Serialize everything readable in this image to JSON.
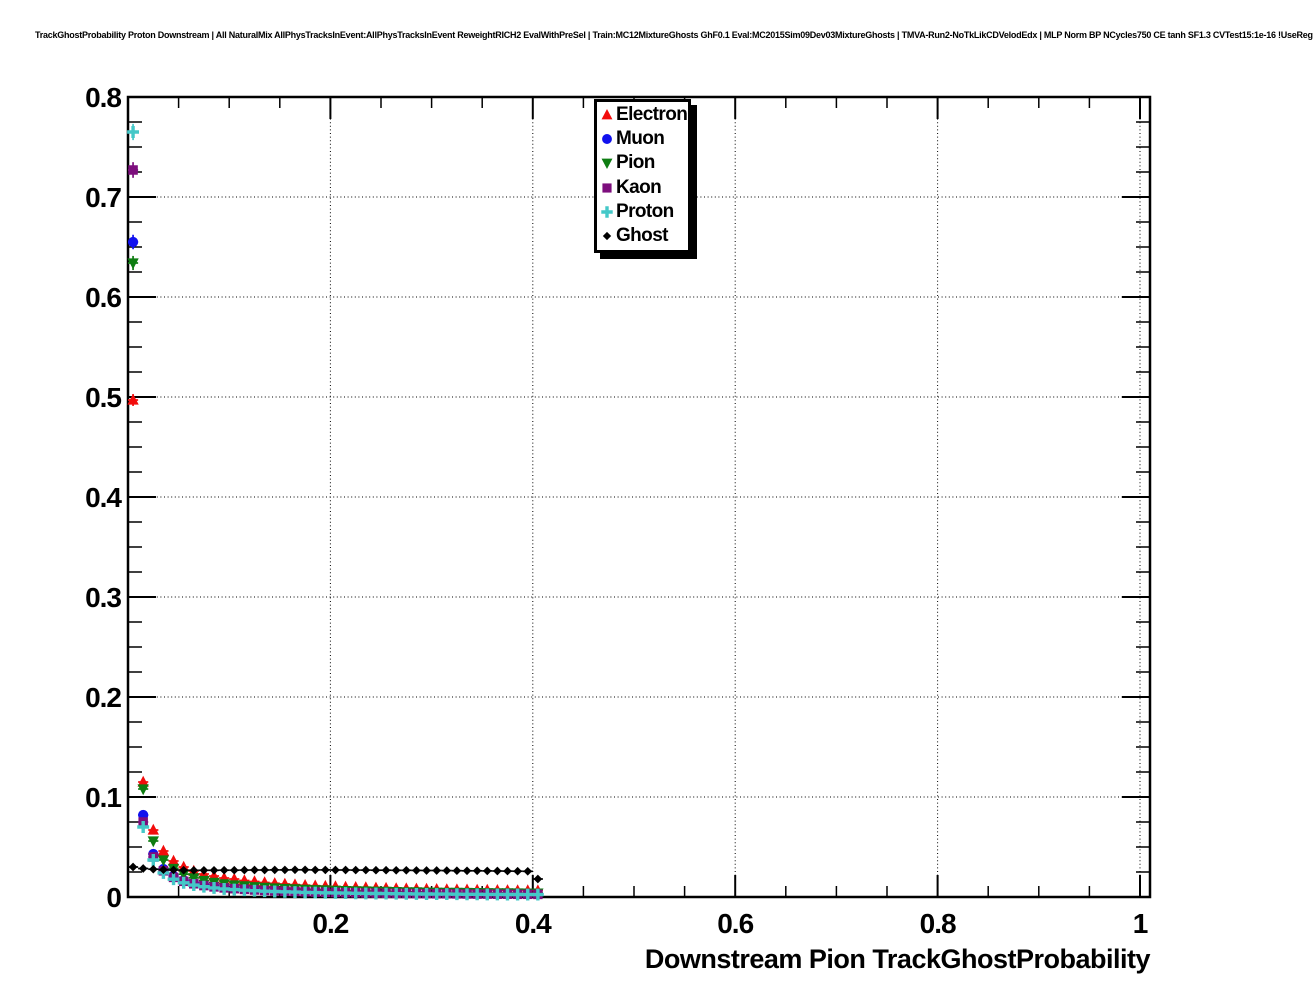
{
  "header": {
    "title": "TrackGhostProbability Proton Downstream | All NaturalMix AllPhysTracksInEvent:AllPhysTracksInEvent ReweightRICH2 EvalWithPreSel | Train:MC12MixtureGhosts GhF0.1 Eval:MC2015Sim09Dev03MixtureGhosts | TMVA-Run2-NoTkLikCDVelodEdx | MLP Norm BP NCycles750 CE tanh SF1.3 CVTest15:1e-16 !UseReg"
  },
  "chart_data": {
    "type": "scatter",
    "title": "TrackGhostProbability Proton Downstream | All NaturalMix AllPhysTracksInEvent:AllPhysTracksInEvent ReweightRICH2 EvalWithPreSel | Train:MC12MixtureGhosts GhF0.1 Eval:MC2015Sim09Dev03MixtureGhosts | TMVA-Run2-NoTkLikCDVelodEdx | MLP Norm BP NCycles750 CE tanh SF1.3 CVTest15:1e-16 !UseReg",
    "xlabel": "Downstream Pion TrackGhostProbability",
    "ylabel": "",
    "xlim": [
      0,
      1.01
    ],
    "ylim": [
      0,
      0.8
    ],
    "grid": {
      "style": "dotted",
      "x_lines": [
        0.2,
        0.4,
        0.6,
        0.8,
        1.0
      ],
      "y_lines": [
        0.1,
        0.2,
        0.3,
        0.4,
        0.5,
        0.6,
        0.7,
        0.8
      ]
    },
    "x_ticks": {
      "major": [
        0.2,
        0.4,
        0.6,
        0.8,
        1.0
      ],
      "labels": [
        "0.2",
        "0.4",
        "0.6",
        "0.8",
        "1"
      ],
      "minor_step": 0.05
    },
    "y_ticks": {
      "major": [
        0,
        0.1,
        0.2,
        0.3,
        0.4,
        0.5,
        0.6,
        0.7,
        0.8
      ],
      "labels": [
        "0",
        "0.1",
        "0.2",
        "0.3",
        "0.4",
        "0.5",
        "0.6",
        "0.7",
        "0.8"
      ],
      "minor_step": 0.025
    },
    "legend_position": "top-center-inside",
    "xerr": 0.005,
    "x": [
      0.005,
      0.015,
      0.025,
      0.035,
      0.045,
      0.055,
      0.065,
      0.075,
      0.085,
      0.095,
      0.105,
      0.115,
      0.125,
      0.135,
      0.145,
      0.155,
      0.165,
      0.175,
      0.185,
      0.195,
      0.205,
      0.215,
      0.225,
      0.235,
      0.245,
      0.255,
      0.265,
      0.275,
      0.285,
      0.295,
      0.305,
      0.315,
      0.325,
      0.335,
      0.345,
      0.355,
      0.365,
      0.375,
      0.385,
      0.395,
      0.405
    ],
    "series": [
      {
        "name": "Electron",
        "marker": "triangle-up",
        "color": "#f20c0c",
        "values": [
          0.497,
          0.115,
          0.067,
          0.046,
          0.036,
          0.03,
          0.026,
          0.023,
          0.021,
          0.019,
          0.018,
          0.0165,
          0.0155,
          0.0145,
          0.0137,
          0.013,
          0.0124,
          0.0118,
          0.0113,
          0.0109,
          0.0105,
          0.0101,
          0.0098,
          0.0095,
          0.0092,
          0.0089,
          0.0086,
          0.0084,
          0.0082,
          0.008,
          0.0078,
          0.0076,
          0.0074,
          0.0073,
          0.0071,
          0.007,
          0.0068,
          0.0067,
          0.0066,
          0.0065,
          0.0064
        ]
      },
      {
        "name": "Muon",
        "marker": "circle",
        "color": "#1111ee",
        "values": [
          0.655,
          0.082,
          0.043,
          0.028,
          0.021,
          0.0168,
          0.0141,
          0.0122,
          0.0108,
          0.0097,
          0.0088,
          0.0081,
          0.0075,
          0.007,
          0.0066,
          0.0062,
          0.0059,
          0.0056,
          0.0053,
          0.0051,
          0.0049,
          0.0047,
          0.0045,
          0.0043,
          0.0042,
          0.004,
          0.0039,
          0.0038,
          0.0037,
          0.0036,
          0.0035,
          0.0034,
          0.0033,
          0.0032,
          0.0032,
          0.0031,
          0.003,
          0.003,
          0.0029,
          0.0029,
          0.0028
        ]
      },
      {
        "name": "Pion",
        "marker": "triangle-down",
        "color": "#0e7d12",
        "values": [
          0.634,
          0.108,
          0.056,
          0.037,
          0.0285,
          0.0228,
          0.0191,
          0.0165,
          0.0146,
          0.0132,
          0.012,
          0.0111,
          0.0103,
          0.0096,
          0.009,
          0.0085,
          0.0081,
          0.0077,
          0.0073,
          0.007,
          0.0067,
          0.0064,
          0.0062,
          0.006,
          0.0058,
          0.0056,
          0.0054,
          0.0052,
          0.0051,
          0.0049,
          0.0048,
          0.0047,
          0.0046,
          0.0045,
          0.0044,
          0.0043,
          0.0042,
          0.0041,
          0.004,
          0.0039,
          0.0039
        ]
      },
      {
        "name": "Kaon",
        "marker": "square",
        "color": "#7d0e7d",
        "values": [
          0.727,
          0.075,
          0.04,
          0.0262,
          0.0196,
          0.0157,
          0.0132,
          0.0114,
          0.0101,
          0.0091,
          0.0083,
          0.0076,
          0.007,
          0.0065,
          0.0061,
          0.0058,
          0.0055,
          0.0052,
          0.0049,
          0.0047,
          0.0045,
          0.0043,
          0.0042,
          0.004,
          0.0039,
          0.0037,
          0.0036,
          0.0035,
          0.0034,
          0.0033,
          0.0032,
          0.0032,
          0.0031,
          0.003,
          0.0029,
          0.0029,
          0.0028,
          0.0028,
          0.0027,
          0.0027,
          0.0026
        ]
      },
      {
        "name": "Proton",
        "marker": "cross",
        "color": "#44c8c8",
        "values": [
          0.765,
          0.07,
          0.037,
          0.0241,
          0.0178,
          0.0142,
          0.0119,
          0.0103,
          0.0091,
          0.0081,
          0.0074,
          0.0068,
          0.0063,
          0.0058,
          0.0055,
          0.0052,
          0.0049,
          0.0046,
          0.0044,
          0.0042,
          0.0041,
          0.0039,
          0.0037,
          0.0036,
          0.0035,
          0.0034,
          0.0033,
          0.0032,
          0.0031,
          0.003,
          0.0029,
          0.0029,
          0.0028,
          0.0027,
          0.0027,
          0.0026,
          0.0026,
          0.0025,
          0.0025,
          0.0024,
          0.0024
        ]
      },
      {
        "name": "Ghost",
        "marker": "diamond",
        "color": "#000000",
        "values": [
          0.03,
          0.0285,
          0.0278,
          0.0273,
          0.027,
          0.0268,
          0.0267,
          0.0267,
          0.0267,
          0.0268,
          0.0268,
          0.0269,
          0.027,
          0.027,
          0.0271,
          0.0271,
          0.0272,
          0.0272,
          0.0271,
          0.0271,
          0.027,
          0.027,
          0.0269,
          0.0269,
          0.0268,
          0.0268,
          0.0267,
          0.0267,
          0.0266,
          0.0265,
          0.0265,
          0.0264,
          0.0263,
          0.0262,
          0.0262,
          0.0261,
          0.026,
          0.0259,
          0.0258,
          0.0257,
          0.018
        ]
      }
    ]
  }
}
